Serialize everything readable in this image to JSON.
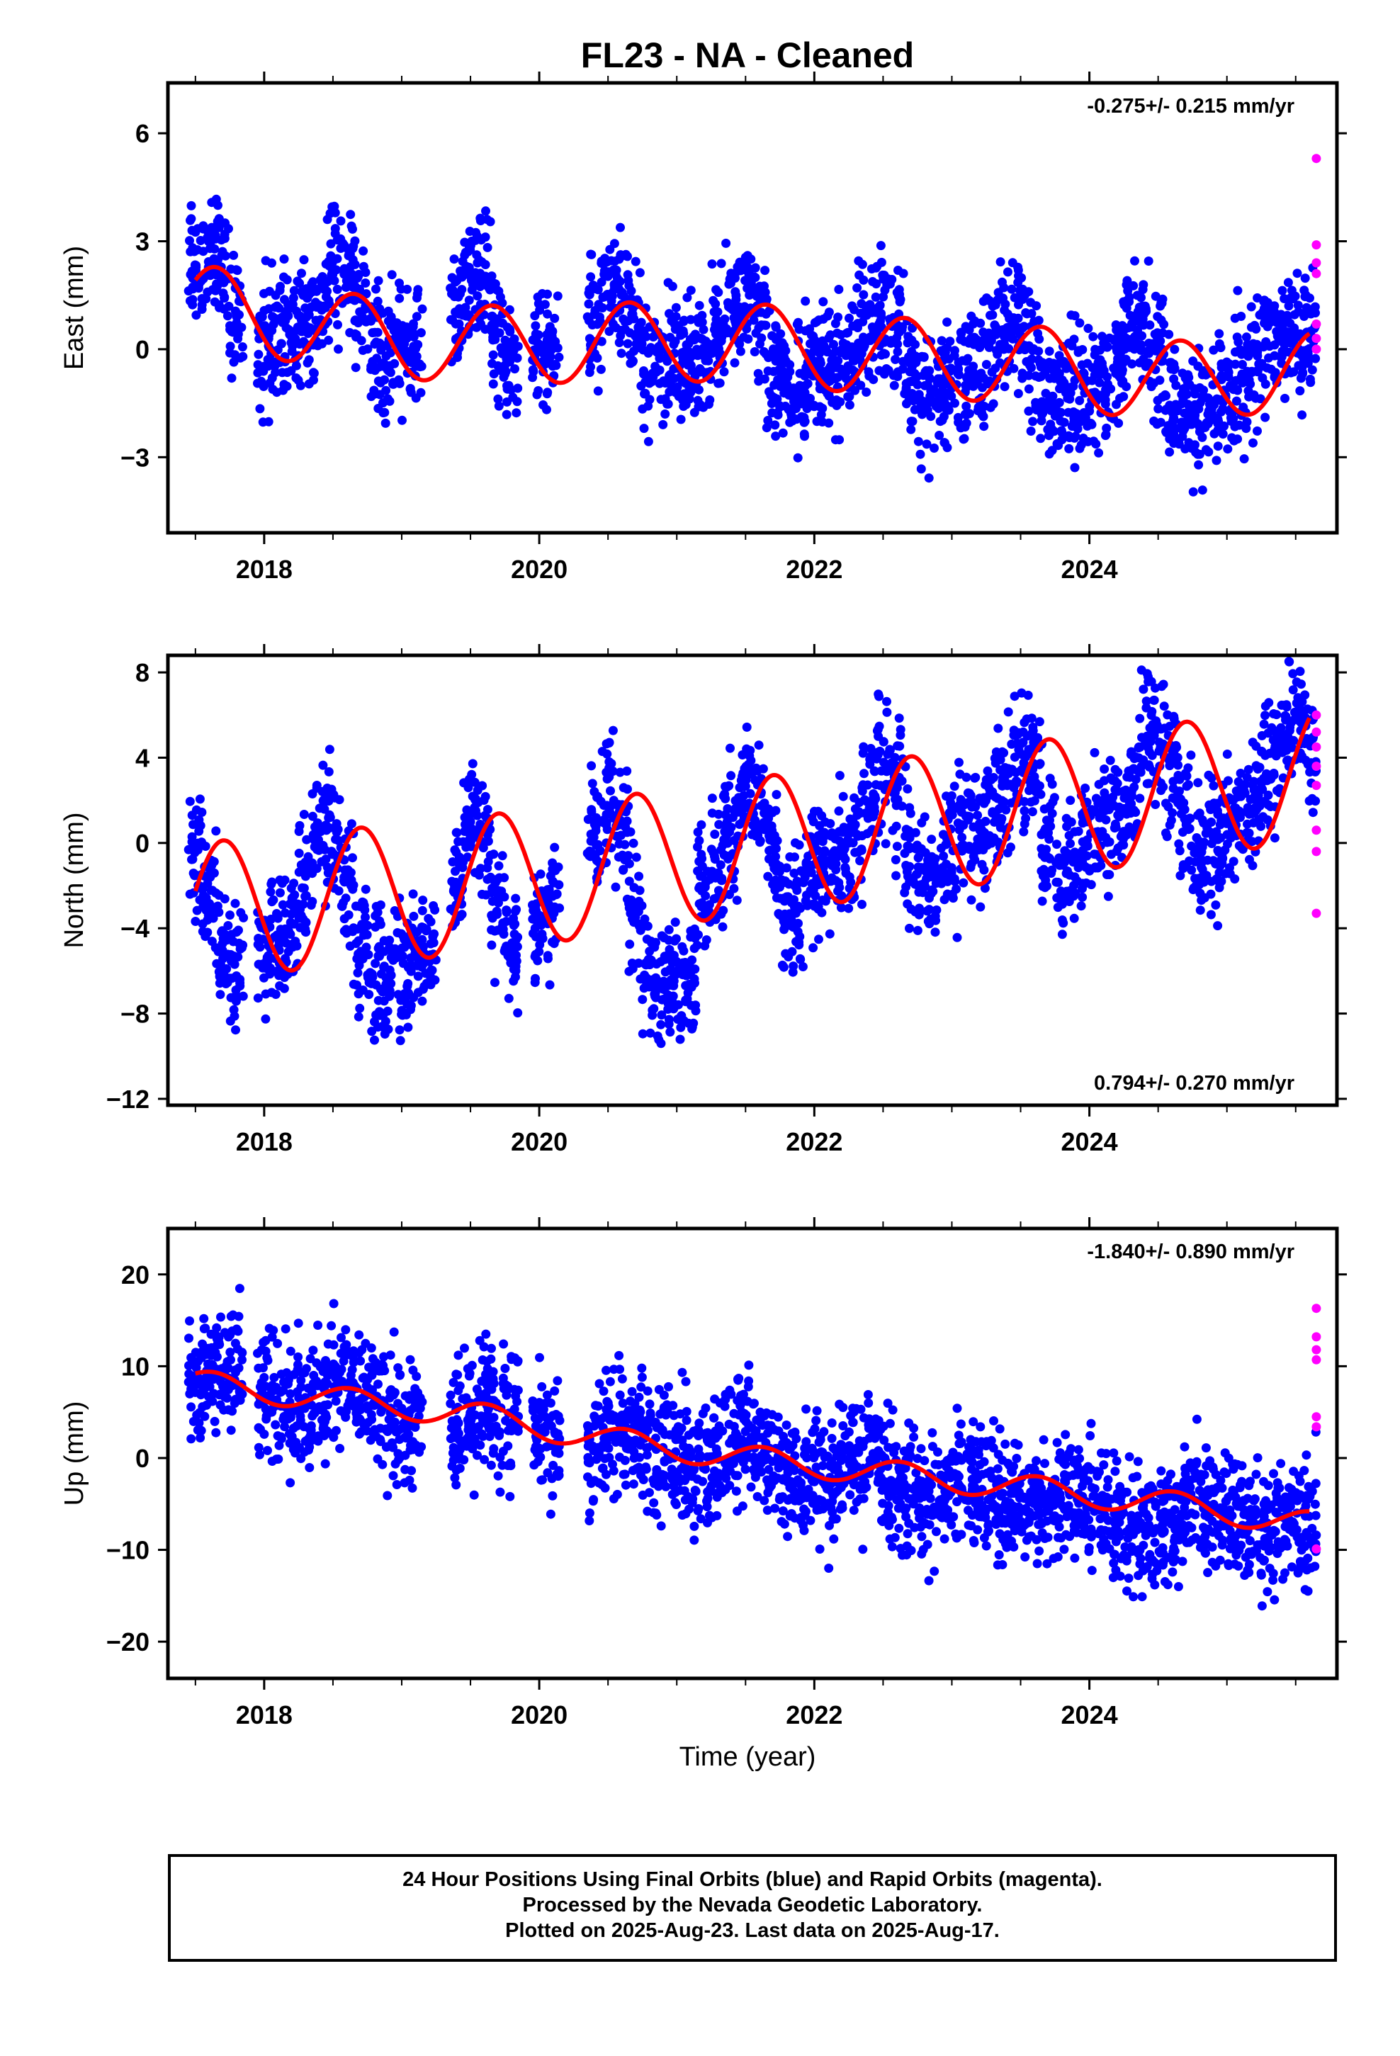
{
  "title": "FL23  - NA - Cleaned",
  "xlabel": "Time (year)",
  "footer": {
    "line1": "24 Hour Positions Using Final Orbits (blue) and Rapid Orbits (magenta).",
    "line2": "Processed by the Nevada Geodetic Laboratory.",
    "line3": "Plotted on 2025-Aug-23. Last data on 2025-Aug-17."
  },
  "colors": {
    "final_orbits": "#0000ff",
    "rapid_orbits": "#ff00ff",
    "model": "#ff0000"
  },
  "chart_data": [
    {
      "type": "scatter",
      "ylabel": "East (mm)",
      "rate_text": "-0.275+/- 0.215 mm/yr",
      "rate_position": "top-right",
      "xlim": [
        2017.3,
        2025.8
      ],
      "ylim": [
        -5.1,
        7.4
      ],
      "yticks": [
        -3,
        0,
        3,
        6
      ],
      "xticks": [
        2018,
        2020,
        2022,
        2024
      ],
      "model": {
        "amplitude": 1.1,
        "phase": 0.6,
        "trend": [
          [
            2017.5,
            1.3
          ],
          [
            2018.5,
            0.5
          ],
          [
            2019.5,
            0.1
          ],
          [
            2020.5,
            0.2
          ],
          [
            2021.5,
            0.2
          ],
          [
            2022.5,
            -0.2
          ],
          [
            2023.5,
            -0.4
          ],
          [
            2024.5,
            -0.9
          ],
          [
            2025.6,
            -0.6
          ]
        ]
      },
      "rapid": [
        [
          2025.65,
          5.3
        ],
        [
          2025.65,
          2.9
        ],
        [
          2025.65,
          2.4
        ],
        [
          2025.65,
          2.1
        ],
        [
          2025.65,
          0.7
        ],
        [
          2025.65,
          0.3
        ],
        [
          2025.65,
          0.0
        ]
      ],
      "series": [
        {
          "name": "Final orbits",
          "x": [
            2017.5,
            2017.6,
            2017.7,
            2017.8,
            2018.0,
            2018.1,
            2018.2,
            2018.3,
            2018.4,
            2018.5,
            2018.6,
            2018.7,
            2018.8,
            2018.9,
            2019.0,
            2019.1,
            2019.4,
            2019.5,
            2019.6,
            2019.7,
            2019.8,
            2020.0,
            2020.1,
            2020.4,
            2020.5,
            2020.6,
            2020.7,
            2020.8,
            2020.9,
            2021.0,
            2021.1,
            2021.2,
            2021.3,
            2021.4,
            2021.5,
            2021.6,
            2021.7,
            2021.8,
            2021.9,
            2022.0,
            2022.1,
            2022.2,
            2022.3,
            2022.4,
            2022.5,
            2022.6,
            2022.7,
            2022.8,
            2022.9,
            2023.0,
            2023.1,
            2023.2,
            2023.3,
            2023.4,
            2023.5,
            2023.6,
            2023.7,
            2023.8,
            2023.9,
            2024.0,
            2024.1,
            2024.2,
            2024.3,
            2024.4,
            2024.5,
            2024.6,
            2024.7,
            2024.8,
            2024.9,
            2025.0,
            2025.1,
            2025.2,
            2025.3,
            2025.4,
            2025.5,
            2025.6
          ],
          "y": [
            2.1,
            2.6,
            2.4,
            1.2,
            0.2,
            0.3,
            0.5,
            0.6,
            1.1,
            1.9,
            2.2,
            1.2,
            0.0,
            -0.1,
            0.1,
            0.3,
            1.0,
            1.9,
            1.8,
            0.4,
            -0.4,
            -0.2,
            0.0,
            0.8,
            1.6,
            1.6,
            0.5,
            -0.6,
            -0.5,
            -0.3,
            -0.3,
            -0.2,
            0.4,
            1.3,
            1.4,
            0.6,
            -0.4,
            -0.9,
            -0.8,
            -0.6,
            -0.5,
            -0.5,
            0.1,
            1.1,
            1.1,
            0.4,
            -0.8,
            -1.2,
            -1.1,
            -0.9,
            -0.8,
            -0.6,
            0.2,
            0.9,
            0.8,
            -0.3,
            -1.2,
            -1.4,
            -1.4,
            -1.2,
            -1.0,
            -0.4,
            0.5,
            0.6,
            -0.2,
            -1.5,
            -1.8,
            -1.7,
            -1.5,
            -1.3,
            -1.0,
            -0.2,
            0.3,
            0.4,
            0.5,
            0.3
          ]
        }
      ]
    },
    {
      "type": "scatter",
      "ylabel": "North (mm)",
      "rate_text": "0.794+/- 0.270 mm/yr",
      "rate_position": "bottom-right",
      "xlim": [
        2017.3,
        2025.8
      ],
      "ylim": [
        -12.3,
        8.8
      ],
      "yticks": [
        -12,
        -8,
        -4,
        0,
        4,
        8
      ],
      "xticks": [
        2018,
        2020,
        2022,
        2024
      ],
      "model": {
        "amplitude": 3.2,
        "phase": 0.3,
        "trend": [
          [
            2017.5,
            -3.2
          ],
          [
            2018.5,
            -2.6
          ],
          [
            2019.5,
            -2.0
          ],
          [
            2020.5,
            -1.1
          ],
          [
            2021.0,
            -0.6
          ],
          [
            2021.5,
            -0.2
          ],
          [
            2022.5,
            0.7
          ],
          [
            2023.5,
            1.5
          ],
          [
            2024.5,
            2.3
          ],
          [
            2025.6,
            3.3
          ]
        ]
      },
      "rapid": [
        [
          2025.65,
          6.0
        ],
        [
          2025.65,
          5.2
        ],
        [
          2025.65,
          4.5
        ],
        [
          2025.65,
          3.6
        ],
        [
          2025.65,
          2.7
        ],
        [
          2025.65,
          0.6
        ],
        [
          2025.65,
          -0.4
        ],
        [
          2025.65,
          -3.3
        ]
      ],
      "series": [
        {
          "name": "Final orbits",
          "x": [
            2017.5,
            2017.6,
            2017.7,
            2017.8,
            2018.0,
            2018.1,
            2018.2,
            2018.3,
            2018.4,
            2018.5,
            2018.6,
            2018.7,
            2018.8,
            2018.9,
            2019.0,
            2019.1,
            2019.2,
            2019.4,
            2019.5,
            2019.6,
            2019.7,
            2019.8,
            2020.0,
            2020.1,
            2020.4,
            2020.5,
            2020.6,
            2020.7,
            2020.8,
            2020.9,
            2021.0,
            2021.1,
            2021.2,
            2021.3,
            2021.4,
            2021.5,
            2021.6,
            2021.7,
            2021.8,
            2021.9,
            2022.0,
            2022.1,
            2022.2,
            2022.3,
            2022.4,
            2022.5,
            2022.6,
            2022.7,
            2022.8,
            2022.9,
            2023.0,
            2023.1,
            2023.2,
            2023.3,
            2023.4,
            2023.5,
            2023.6,
            2023.7,
            2023.8,
            2023.9,
            2024.0,
            2024.1,
            2024.2,
            2024.3,
            2024.4,
            2024.5,
            2024.6,
            2024.7,
            2024.8,
            2024.9,
            2025.0,
            2025.1,
            2025.2,
            2025.3,
            2025.4,
            2025.5,
            2025.6
          ],
          "y": [
            -0.5,
            -2.5,
            -5.0,
            -6.4,
            -5.5,
            -4.8,
            -4.2,
            -2.0,
            1.0,
            0.4,
            -2.0,
            -4.8,
            -6.2,
            -6.6,
            -6.0,
            -5.4,
            -5.0,
            -1.5,
            1.2,
            0.2,
            -3.0,
            -4.7,
            -3.5,
            -2.8,
            0.5,
            2.0,
            0.6,
            -3.5,
            -6.0,
            -6.5,
            -6.5,
            -6.6,
            -1.7,
            -1.0,
            1.0,
            2.8,
            1.8,
            -1.0,
            -3.2,
            -2.4,
            -1.6,
            -1.0,
            -0.5,
            -0.2,
            1.8,
            3.6,
            2.5,
            -0.5,
            -2.3,
            -1.6,
            -0.4,
            0.5,
            1.0,
            1.2,
            2.5,
            4.4,
            3.5,
            0.2,
            -1.6,
            -1.0,
            -0.1,
            0.4,
            1.2,
            2.4,
            4.2,
            5.2,
            3.4,
            0.8,
            -0.8,
            -0.2,
            0.6,
            1.4,
            2.0,
            3.5,
            4.8,
            6.0,
            4.2
          ]
        }
      ]
    },
    {
      "type": "scatter",
      "ylabel": "Up (mm)",
      "rate_text": "-1.840+/- 0.890 mm/yr",
      "rate_position": "top-right",
      "xlim": [
        2017.3,
        2025.8
      ],
      "ylim": [
        -24,
        25
      ],
      "yticks": [
        -20,
        -10,
        0,
        10,
        20
      ],
      "xticks": [
        2018,
        2020,
        2022,
        2024
      ],
      "model": {
        "amplitude": 1.4,
        "phase": 0.8,
        "trend": [
          [
            2017.5,
            8.2
          ],
          [
            2018.5,
            6.4
          ],
          [
            2019.5,
            4.8
          ],
          [
            2020.5,
            2.0
          ],
          [
            2021.5,
            0.0
          ],
          [
            2022.5,
            -1.6
          ],
          [
            2023.5,
            -3.2
          ],
          [
            2024.5,
            -4.8
          ],
          [
            2025.6,
            -7.2
          ]
        ]
      },
      "rapid": [
        [
          2025.65,
          16.3
        ],
        [
          2025.65,
          13.2
        ],
        [
          2025.65,
          11.8
        ],
        [
          2025.65,
          10.7
        ],
        [
          2025.65,
          4.5
        ],
        [
          2025.65,
          3.4
        ],
        [
          2025.65,
          -9.9
        ]
      ],
      "series": [
        {
          "name": "Final orbits",
          "x": [
            2017.5,
            2017.6,
            2017.7,
            2017.8,
            2018.0,
            2018.1,
            2018.2,
            2018.3,
            2018.4,
            2018.5,
            2018.6,
            2018.7,
            2018.8,
            2018.9,
            2019.0,
            2019.1,
            2019.4,
            2019.5,
            2019.6,
            2019.7,
            2019.8,
            2020.0,
            2020.1,
            2020.4,
            2020.5,
            2020.6,
            2020.7,
            2020.8,
            2020.9,
            2021.0,
            2021.1,
            2021.2,
            2021.3,
            2021.4,
            2021.5,
            2021.6,
            2021.7,
            2021.8,
            2021.9,
            2022.0,
            2022.1,
            2022.2,
            2022.3,
            2022.4,
            2022.5,
            2022.6,
            2022.7,
            2022.8,
            2022.9,
            2023.0,
            2023.1,
            2023.2,
            2023.3,
            2023.4,
            2023.5,
            2023.6,
            2023.7,
            2023.8,
            2023.9,
            2024.0,
            2024.1,
            2024.2,
            2024.3,
            2024.4,
            2024.5,
            2024.6,
            2024.7,
            2024.8,
            2024.9,
            2025.0,
            2025.1,
            2025.2,
            2025.3,
            2025.4,
            2025.5,
            2025.6
          ],
          "y": [
            7.5,
            9.0,
            9.2,
            8.4,
            7.0,
            6.0,
            5.4,
            5.0,
            5.5,
            6.8,
            7.6,
            7.0,
            5.8,
            4.8,
            4.0,
            3.6,
            3.2,
            4.5,
            5.5,
            5.8,
            5.0,
            2.5,
            1.8,
            1.3,
            2.6,
            3.6,
            3.0,
            1.8,
            0.8,
            0.0,
            -0.5,
            -0.4,
            0.5,
            1.6,
            2.0,
            1.2,
            -0.3,
            -1.5,
            -2.2,
            -2.3,
            -1.8,
            -0.5,
            0.2,
            0.0,
            -1.4,
            -2.6,
            -3.6,
            -4.0,
            -4.0,
            -3.2,
            -2.4,
            -2.4,
            -3.4,
            -4.4,
            -5.4,
            -5.8,
            -5.4,
            -4.4,
            -4.0,
            -4.6,
            -5.6,
            -6.6,
            -7.4,
            -7.8,
            -7.6,
            -6.8,
            -5.8,
            -5.0,
            -5.4,
            -6.2,
            -7.2,
            -7.8,
            -8.0,
            -7.6,
            -7.2,
            -6.0
          ]
        }
      ]
    }
  ]
}
